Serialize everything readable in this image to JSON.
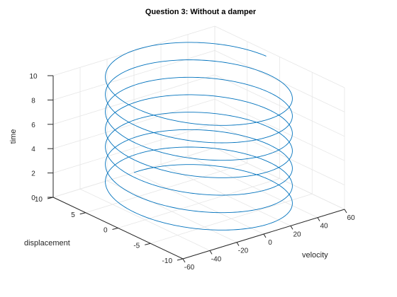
{
  "chart_data": {
    "type": "line",
    "title": "Question 3: Without a damper",
    "xlabel": "velocity",
    "ylabel": "displacement",
    "zlabel": "time",
    "xlim": [
      -60,
      60
    ],
    "ylim": [
      -10,
      10
    ],
    "zlim": [
      0,
      10
    ],
    "x_ticks": [
      "-60",
      "-40",
      "-20",
      "0",
      "20",
      "40",
      "60"
    ],
    "x_tick_values": [
      -60,
      -40,
      -20,
      0,
      20,
      40,
      60
    ],
    "y_ticks": [
      "-10",
      "-5",
      "0",
      "5",
      "10"
    ],
    "y_tick_values": [
      -10,
      -5,
      0,
      5,
      10
    ],
    "z_ticks": [
      "0",
      "2",
      "4",
      "6",
      "8",
      "10"
    ],
    "z_tick_values": [
      0,
      2,
      4,
      6,
      8,
      10
    ],
    "grid": true,
    "view": "3d",
    "line_color": "#0072bd",
    "series": [
      {
        "x_amplitude": 50,
        "y_amplitude": 10,
        "t_start": 0,
        "t_end": 10.4,
        "revolutions": 7.25,
        "x": "velocity(t) = 50*sin(2*pi*7.25*t/10.4)",
        "y": "displacement(t) = 10*cos(2*pi*7.25*t/10.4)"
      }
    ]
  }
}
